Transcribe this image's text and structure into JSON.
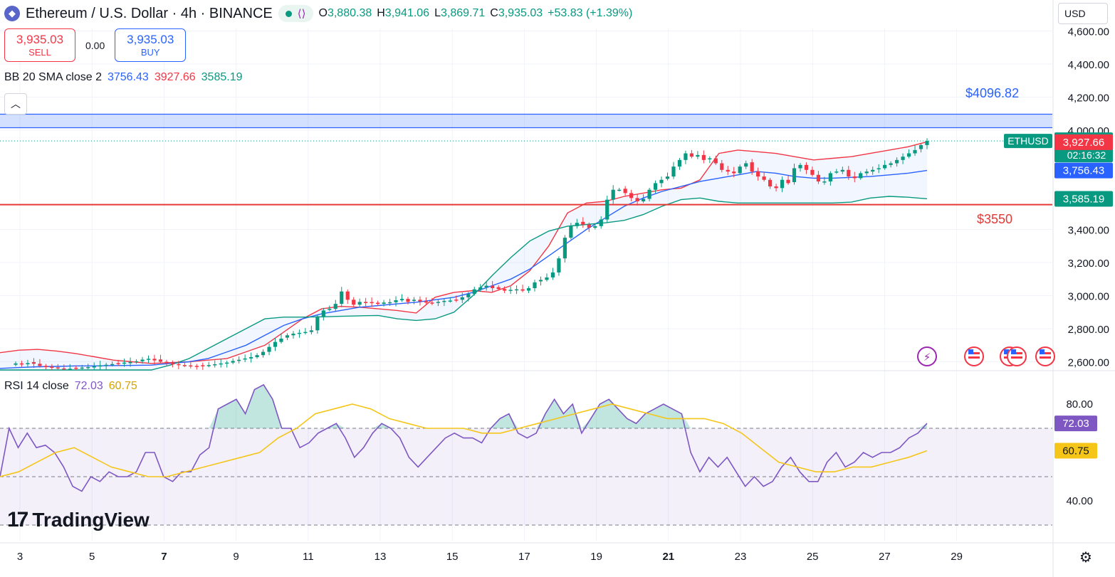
{
  "header": {
    "symbol_title": "Ethereum / U.S. Dollar · 4h · BINANCE",
    "ohlc": [
      {
        "key": "O",
        "value": "3,880.38"
      },
      {
        "key": "H",
        "value": "3,941.06"
      },
      {
        "key": "L",
        "value": "3,869.71"
      },
      {
        "key": "C",
        "value": "3,935.03"
      }
    ],
    "change": "+53.83 (+1.39%)"
  },
  "trade": {
    "sell_price": "3,935.03",
    "sell_label": "SELL",
    "spread": "0.00",
    "buy_price": "3,935.03",
    "buy_label": "BUY"
  },
  "currency_button": "USD",
  "logo_text": "TradingView",
  "colors": {
    "up": "#089981",
    "down": "#f23645",
    "bb_upper": "#f23645",
    "bb_basis": "#2962ff",
    "bb_lower": "#089981",
    "rsi": "#7e57c2",
    "rsi_ma": "#f5c518",
    "resistance": "#2962ff",
    "support": "#e53935"
  },
  "chart_data": {
    "type": "candlestick",
    "price_axis": {
      "ticks": [
        4600,
        4400,
        4200,
        4000,
        3400,
        3200,
        3000,
        2800,
        2600
      ],
      "tick_labels": [
        "4,600.00",
        "4,400.00",
        "4,200.00",
        "4,000.00",
        "3,400.00",
        "3,200.00",
        "3,000.00",
        "2,800.00",
        "2,600.00"
      ]
    },
    "x_axis": {
      "ticks": [
        3,
        5,
        7,
        9,
        11,
        13,
        15,
        17,
        19,
        21,
        23,
        25,
        27,
        29
      ],
      "tick_labels": [
        "3",
        "5",
        "7",
        "9",
        "11",
        "13",
        "15",
        "17",
        "19",
        "21",
        "23",
        "25",
        "27",
        "29"
      ]
    },
    "closes": [
      2590,
      2585,
      2592,
      2588,
      2575,
      2570,
      2566,
      2560,
      2555,
      2558,
      2562,
      2565,
      2568,
      2572,
      2578,
      2582,
      2586,
      2590,
      2595,
      2598,
      2603,
      2613,
      2618,
      2608,
      2600,
      2592,
      2586,
      2580,
      2578,
      2575,
      2573,
      2576,
      2580,
      2585,
      2590,
      2595,
      2605,
      2612,
      2620,
      2628,
      2640,
      2660,
      2690,
      2720,
      2740,
      2760,
      2770,
      2775,
      2780,
      2790,
      2875,
      2910,
      2920,
      2950,
      3025,
      2975,
      2945,
      2962,
      2955,
      2957,
      2950,
      2958,
      2960,
      2972,
      2980,
      2962,
      2975,
      2965,
      2958,
      2957,
      2962,
      2968,
      2970,
      2975,
      2990,
      3010,
      3038,
      3050,
      3060,
      3045,
      3040,
      3030,
      3035,
      3038,
      3030,
      3045,
      3080,
      3095,
      3110,
      3140,
      3225,
      3350,
      3420,
      3440,
      3430,
      3410,
      3420,
      3460,
      3580,
      3640,
      3640,
      3620,
      3590,
      3570,
      3585,
      3640,
      3680,
      3700,
      3720,
      3780,
      3820,
      3860,
      3840,
      3850,
      3820,
      3830,
      3800,
      3760,
      3750,
      3740,
      3780,
      3800,
      3750,
      3720,
      3700,
      3660,
      3650,
      3700,
      3680,
      3770,
      3790,
      3760,
      3730,
      3690,
      3690,
      3740,
      3750,
      3760,
      3720,
      3710,
      3740,
      3750,
      3760,
      3770,
      3790,
      3800,
      3820,
      3840,
      3860,
      3880,
      3910,
      3935.03
    ],
    "bollinger": {
      "name": "BB 20 SMA close 2",
      "basis": 3756.43,
      "upper": 3927.66,
      "lower": 3585.19,
      "upper_series": [
        2655,
        2670,
        2675,
        2665,
        2650,
        2630,
        2610,
        2600,
        2590,
        2595,
        2600,
        2610,
        2620,
        2660,
        2700,
        2780,
        2860,
        2920,
        2935,
        2930,
        2920,
        2910,
        2895,
        2990,
        3020,
        3030,
        3020,
        3060,
        3150,
        3300,
        3500,
        3560,
        3570,
        3600,
        3620,
        3640,
        3650,
        3700,
        3860,
        3880,
        3870,
        3860,
        3840,
        3820,
        3830,
        3840,
        3860,
        3880,
        3900,
        3930
      ],
      "basis_series": [
        2560,
        2565,
        2570,
        2572,
        2575,
        2575,
        2577,
        2578,
        2580,
        2590,
        2600,
        2620,
        2660,
        2700,
        2760,
        2820,
        2860,
        2890,
        2910,
        2930,
        2940,
        2950,
        2960,
        2975,
        2990,
        3020,
        3060,
        3100,
        3160,
        3240,
        3320,
        3400,
        3470,
        3540,
        3590,
        3630,
        3660,
        3690,
        3710,
        3730,
        3750,
        3740,
        3720,
        3710,
        3710,
        3715,
        3720,
        3730,
        3740,
        3756.43
      ],
      "lower_series": [
        2490,
        2480,
        2470,
        2468,
        2470,
        2480,
        2490,
        2500,
        2520,
        2580,
        2620,
        2680,
        2740,
        2800,
        2860,
        2870,
        2870,
        2872,
        2875,
        2878,
        2880,
        2860,
        2850,
        2860,
        2900,
        3000,
        3120,
        3230,
        3330,
        3390,
        3420,
        3430,
        3440,
        3455,
        3490,
        3540,
        3580,
        3590,
        3570,
        3560,
        3560,
        3560,
        3560,
        3560,
        3560,
        3565,
        3590,
        3600,
        3595,
        3585.19
      ]
    },
    "annotations": [
      {
        "label": "$4096.82",
        "value": 4096.82
      },
      {
        "label": "$3550",
        "value": 3550
      }
    ],
    "last_price": {
      "symbol": "ETHUSD",
      "value": "3,935.03",
      "countdown": "02:16:32"
    },
    "rsi": {
      "name": "RSI 14 close",
      "value": "72.03",
      "ma": "60.75",
      "ticks": [
        80,
        40
      ],
      "tick_labels": [
        "80.00",
        "40.00"
      ],
      "overbought": 70,
      "oversold": 30,
      "series": [
        50,
        70,
        62,
        68,
        62,
        63,
        60,
        54,
        46,
        44,
        50,
        48,
        52,
        50,
        50,
        52,
        60,
        60,
        50,
        48,
        52,
        52,
        59,
        62,
        78,
        80,
        82,
        76,
        86,
        88,
        82,
        70,
        70,
        62,
        64,
        68,
        70,
        72,
        66,
        58,
        62,
        68,
        72,
        70,
        66,
        58,
        54,
        58,
        62,
        66,
        68,
        66,
        66,
        64,
        70,
        74,
        76,
        68,
        66,
        68,
        76,
        82,
        76,
        80,
        68,
        74,
        80,
        82,
        78,
        74,
        72,
        76,
        78,
        80,
        78,
        76,
        60,
        52,
        58,
        54,
        58,
        52,
        46,
        50,
        46,
        48,
        54,
        58,
        52,
        48,
        48,
        56,
        60,
        54,
        56,
        60,
        58,
        60,
        60,
        62,
        66,
        68,
        72.03
      ],
      "ma_series": [
        50,
        52,
        56,
        60,
        62,
        58,
        54,
        52,
        50,
        50,
        52,
        54,
        56,
        58,
        60,
        66,
        70,
        76,
        78,
        80,
        78,
        74,
        72,
        70,
        70,
        70,
        68,
        68,
        70,
        72,
        74,
        76,
        78,
        80,
        78,
        76,
        74,
        74,
        74,
        72,
        68,
        62,
        56,
        54,
        52,
        52,
        54,
        54,
        56,
        58,
        60.75
      ]
    }
  }
}
